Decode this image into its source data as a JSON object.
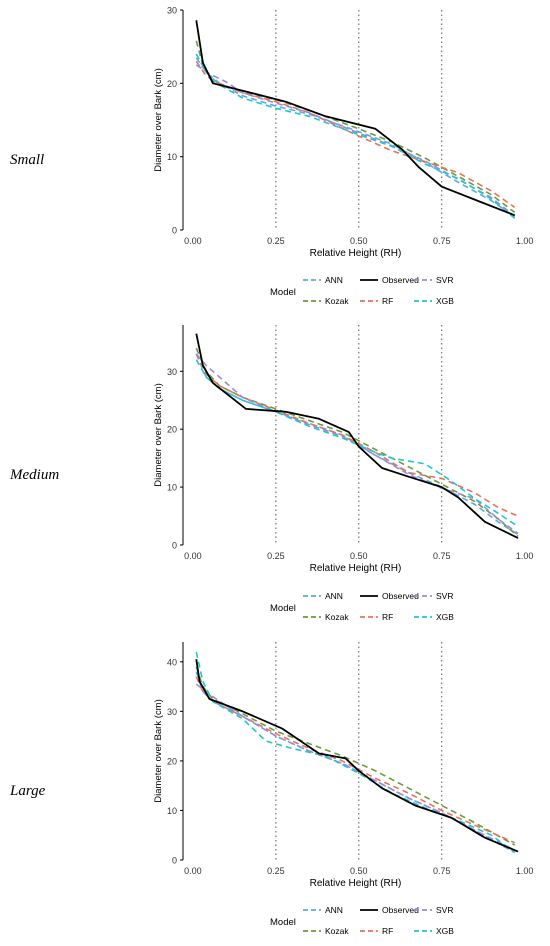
{
  "chart_data": [
    {
      "type": "line",
      "group_label": "Small",
      "xlabel": "Relative Height (RH)",
      "ylabel": "Diameter over Bark (cm)",
      "xlim": [
        -0.03,
        1.01
      ],
      "ylim": [
        0,
        30
      ],
      "xticks": [
        0.0,
        0.25,
        0.5,
        0.75,
        1.0
      ],
      "xtick_labels": [
        "0.00",
        "0.25",
        "0.50",
        "0.75",
        "1.00"
      ],
      "yticks": [
        0,
        10,
        20,
        30
      ],
      "ytick_labels": [
        "0",
        "10",
        "20",
        "30"
      ],
      "vlines": [
        0.25,
        0.5,
        0.75
      ],
      "legend": {
        "title": "Model",
        "position": "bottom"
      },
      "series": [
        {
          "name": "ANN",
          "color": "#5aa9e6",
          "dashed": true,
          "x": [
            0.01,
            0.04,
            0.08,
            0.15,
            0.25,
            0.35,
            0.5,
            0.6,
            0.7,
            0.8,
            0.9,
            0.97
          ],
          "y": [
            23.5,
            21.5,
            20.0,
            18.3,
            16.9,
            15.8,
            13.4,
            11.7,
            9.2,
            6.5,
            4.0,
            1.8
          ]
        },
        {
          "name": "Kozak",
          "color": "#6a9a3a",
          "dashed": true,
          "x": [
            0.01,
            0.03,
            0.06,
            0.15,
            0.25,
            0.35,
            0.5,
            0.6,
            0.7,
            0.8,
            0.9,
            0.97
          ],
          "y": [
            25.8,
            22.5,
            20.3,
            18.8,
            17.8,
            16.3,
            13.8,
            12.0,
            9.8,
            7.3,
            4.8,
            2.4
          ]
        },
        {
          "name": "Observed",
          "color": "#000000",
          "dashed": false,
          "x": [
            0.01,
            0.03,
            0.06,
            0.15,
            0.28,
            0.4,
            0.55,
            0.63,
            0.68,
            0.75,
            0.88,
            0.97
          ],
          "y": [
            28.6,
            22.8,
            20.0,
            19.0,
            17.5,
            15.5,
            13.8,
            11.0,
            8.6,
            5.9,
            3.6,
            2.0
          ]
        },
        {
          "name": "RF",
          "color": "#e8735a",
          "dashed": true,
          "x": [
            0.01,
            0.04,
            0.08,
            0.15,
            0.25,
            0.35,
            0.5,
            0.6,
            0.7,
            0.8,
            0.9,
            0.97
          ],
          "y": [
            23.0,
            21.0,
            20.0,
            18.7,
            17.5,
            16.0,
            12.8,
            10.8,
            9.3,
            7.8,
            5.3,
            3.1
          ]
        },
        {
          "name": "SVR",
          "color": "#9d8ad6",
          "dashed": true,
          "x": [
            0.01,
            0.05,
            0.1,
            0.15,
            0.25,
            0.35,
            0.5,
            0.6,
            0.7,
            0.8,
            0.9,
            0.97
          ],
          "y": [
            22.5,
            21.3,
            20.2,
            18.7,
            17.3,
            16.0,
            13.2,
            11.5,
            9.4,
            6.9,
            4.4,
            1.9
          ]
        },
        {
          "name": "XGB",
          "color": "#1cc7cf",
          "dashed": true,
          "x": [
            0.01,
            0.04,
            0.08,
            0.15,
            0.25,
            0.35,
            0.5,
            0.6,
            0.7,
            0.8,
            0.9,
            0.97
          ],
          "y": [
            24.0,
            21.5,
            19.8,
            18.0,
            16.6,
            15.5,
            13.0,
            11.4,
            9.0,
            7.0,
            4.2,
            1.6
          ]
        }
      ]
    },
    {
      "type": "line",
      "group_label": "Medium",
      "xlabel": "Relative Height (RH)",
      "ylabel": "Diameter over Bark (cm)",
      "xlim": [
        -0.03,
        1.01
      ],
      "ylim": [
        0,
        38
      ],
      "xticks": [
        0.0,
        0.25,
        0.5,
        0.75,
        1.0
      ],
      "xtick_labels": [
        "0.00",
        "0.25",
        "0.50",
        "0.75",
        "1.00"
      ],
      "yticks": [
        0,
        10,
        20,
        30
      ],
      "ytick_labels": [
        "0",
        "10",
        "20",
        "30"
      ],
      "vlines": [
        0.25,
        0.5,
        0.75
      ],
      "legend": {
        "title": "Model",
        "position": "bottom"
      },
      "series": [
        {
          "name": "ANN",
          "color": "#5aa9e6",
          "dashed": true,
          "x": [
            0.01,
            0.04,
            0.08,
            0.15,
            0.25,
            0.35,
            0.45,
            0.55,
            0.65,
            0.75,
            0.85,
            0.92,
            0.98
          ],
          "y": [
            33.0,
            29.0,
            27.0,
            25.0,
            23.0,
            21.0,
            19.0,
            15.5,
            12.5,
            10.0,
            7.0,
            4.0,
            1.8
          ]
        },
        {
          "name": "Kozak",
          "color": "#6a9a3a",
          "dashed": true,
          "x": [
            0.01,
            0.04,
            0.08,
            0.15,
            0.25,
            0.35,
            0.45,
            0.55,
            0.65,
            0.75,
            0.85,
            0.92,
            0.98
          ],
          "y": [
            34.0,
            30.0,
            27.5,
            25.5,
            23.5,
            21.5,
            19.5,
            16.5,
            13.5,
            10.5,
            7.5,
            4.5,
            1.5
          ]
        },
        {
          "name": "Observed",
          "color": "#000000",
          "dashed": false,
          "x": [
            0.01,
            0.03,
            0.06,
            0.16,
            0.28,
            0.38,
            0.47,
            0.5,
            0.57,
            0.65,
            0.75,
            0.8,
            0.88,
            0.98
          ],
          "y": [
            36.5,
            31.0,
            28.0,
            23.5,
            23.0,
            21.8,
            19.5,
            17.0,
            13.3,
            11.8,
            10.0,
            8.2,
            4.0,
            1.2
          ]
        },
        {
          "name": "RF",
          "color": "#e8735a",
          "dashed": true,
          "x": [
            0.01,
            0.04,
            0.08,
            0.15,
            0.25,
            0.35,
            0.45,
            0.55,
            0.65,
            0.75,
            0.85,
            0.92,
            0.98
          ],
          "y": [
            33.0,
            29.5,
            27.5,
            25.5,
            23.3,
            21.0,
            19.0,
            16.0,
            12.5,
            11.5,
            9.0,
            6.5,
            5.0
          ]
        },
        {
          "name": "SVR",
          "color": "#9d8ad6",
          "dashed": true,
          "x": [
            0.01,
            0.04,
            0.1,
            0.15,
            0.25,
            0.35,
            0.45,
            0.55,
            0.65,
            0.75,
            0.85,
            0.92,
            0.98
          ],
          "y": [
            33.0,
            31.0,
            28.0,
            25.5,
            23.0,
            20.8,
            18.8,
            15.5,
            12.2,
            9.8,
            8.0,
            4.5,
            2.0
          ]
        },
        {
          "name": "XGB",
          "color": "#1cc7cf",
          "dashed": true,
          "x": [
            0.01,
            0.04,
            0.08,
            0.15,
            0.25,
            0.35,
            0.45,
            0.55,
            0.6,
            0.7,
            0.78,
            0.85,
            0.92,
            0.98
          ],
          "y": [
            32.0,
            29.0,
            27.0,
            25.0,
            23.0,
            20.5,
            18.5,
            16.0,
            15.0,
            14.0,
            11.0,
            8.0,
            5.5,
            3.2
          ]
        }
      ]
    },
    {
      "type": "line",
      "group_label": "Large",
      "xlabel": "Relative Height (RH)",
      "ylabel": "Diameter over Bark (cm)",
      "xlim": [
        -0.03,
        1.01
      ],
      "ylim": [
        0,
        44
      ],
      "xticks": [
        0.0,
        0.25,
        0.5,
        0.75,
        1.0
      ],
      "xtick_labels": [
        "0.00",
        "0.25",
        "0.50",
        "0.75",
        "1.00"
      ],
      "yticks": [
        0,
        10,
        20,
        30,
        40
      ],
      "ytick_labels": [
        "0",
        "10",
        "20",
        "30",
        "40"
      ],
      "vlines": [
        0.25,
        0.5,
        0.75
      ],
      "legend": {
        "title": "Model",
        "position": "bottom"
      },
      "series": [
        {
          "name": "ANN",
          "color": "#5aa9e6",
          "dashed": true,
          "x": [
            0.01,
            0.03,
            0.06,
            0.15,
            0.25,
            0.35,
            0.45,
            0.55,
            0.65,
            0.75,
            0.85,
            0.97
          ],
          "y": [
            38.0,
            34.0,
            32.0,
            29.0,
            25.0,
            22.0,
            19.5,
            16.0,
            12.5,
            9.5,
            6.0,
            1.5
          ]
        },
        {
          "name": "Kozak",
          "color": "#6a9a3a",
          "dashed": true,
          "x": [
            0.01,
            0.03,
            0.06,
            0.15,
            0.25,
            0.35,
            0.45,
            0.55,
            0.65,
            0.75,
            0.85,
            0.97
          ],
          "y": [
            39.0,
            35.0,
            32.5,
            29.5,
            26.0,
            23.5,
            21.0,
            18.0,
            14.5,
            11.0,
            7.5,
            3.0
          ]
        },
        {
          "name": "Observed",
          "color": "#000000",
          "dashed": false,
          "x": [
            0.01,
            0.02,
            0.05,
            0.15,
            0.27,
            0.38,
            0.46,
            0.5,
            0.57,
            0.67,
            0.78,
            0.88,
            0.98
          ],
          "y": [
            40.5,
            36.0,
            32.5,
            30.0,
            26.5,
            21.5,
            20.5,
            18.0,
            14.5,
            11.0,
            8.5,
            4.5,
            1.7
          ]
        },
        {
          "name": "RF",
          "color": "#e8735a",
          "dashed": true,
          "x": [
            0.01,
            0.03,
            0.06,
            0.15,
            0.25,
            0.35,
            0.45,
            0.55,
            0.65,
            0.75,
            0.85,
            0.97
          ],
          "y": [
            37.0,
            34.0,
            32.0,
            29.0,
            25.5,
            22.5,
            20.0,
            16.5,
            13.5,
            10.0,
            7.0,
            3.5
          ]
        },
        {
          "name": "SVR",
          "color": "#9d8ad6",
          "dashed": true,
          "x": [
            0.01,
            0.03,
            0.07,
            0.15,
            0.25,
            0.35,
            0.45,
            0.55,
            0.65,
            0.75,
            0.85,
            0.97
          ],
          "y": [
            35.5,
            34.5,
            32.5,
            29.0,
            25.0,
            22.0,
            19.5,
            16.0,
            12.5,
            9.5,
            6.0,
            2.0
          ]
        },
        {
          "name": "XGB",
          "color": "#1cc7cf",
          "dashed": true,
          "x": [
            0.01,
            0.03,
            0.06,
            0.15,
            0.22,
            0.3,
            0.4,
            0.5,
            0.6,
            0.7,
            0.8,
            0.9,
            0.97
          ],
          "y": [
            42.0,
            36.0,
            32.0,
            28.5,
            24.0,
            22.5,
            21.0,
            17.5,
            13.5,
            10.5,
            8.0,
            5.0,
            1.5
          ]
        }
      ]
    }
  ]
}
